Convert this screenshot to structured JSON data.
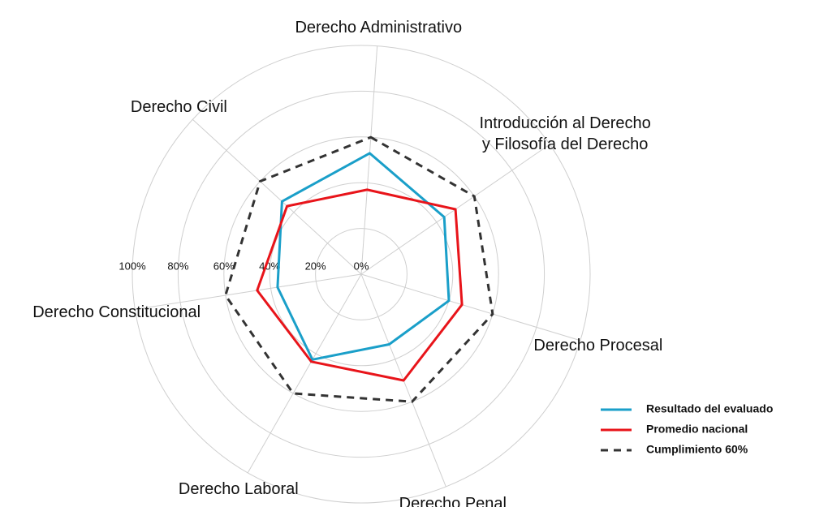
{
  "chart_data": {
    "type": "radar",
    "categories": [
      "Derecho Administrativo",
      "Introducción al Derecho\ny Filosofía del Derecho",
      "Derecho Procesal",
      "Derecho Penal",
      "Derecho Laboral",
      "Derecho Constitucional",
      "Derecho Civil"
    ],
    "series": [
      {
        "name": "Resultado del evaluado",
        "color": "#1a9fc9",
        "dash": false,
        "values": [
          53,
          44,
          40,
          33,
          43,
          37,
          47
        ]
      },
      {
        "name": "Promedio nacional",
        "color": "#e8141a",
        "dash": false,
        "values": [
          37,
          50,
          46,
          50,
          44,
          46,
          44
        ]
      },
      {
        "name": "Cumplimiento 60%",
        "color": "#333333",
        "dash": true,
        "values": [
          60,
          60,
          60,
          60,
          60,
          60,
          60
        ]
      }
    ],
    "rlim": [
      0,
      100
    ],
    "rticks": [
      {
        "value": 0,
        "label": "0%"
      },
      {
        "value": 20,
        "label": "20%"
      },
      {
        "value": 40,
        "label": "40%"
      },
      {
        "value": 60,
        "label": "60%"
      },
      {
        "value": 80,
        "label": "80%"
      },
      {
        "value": 100,
        "label": "100%"
      }
    ],
    "grid": true
  }
}
